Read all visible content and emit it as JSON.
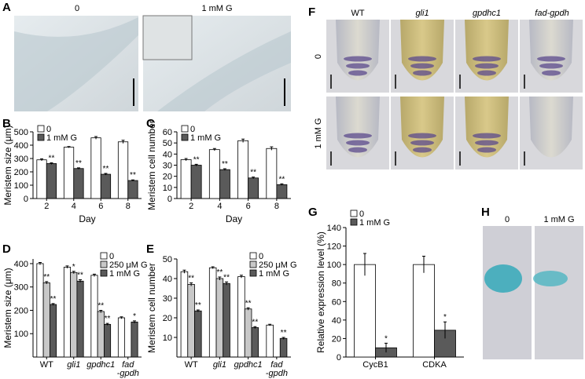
{
  "chart_data": [
    {
      "type": "bar",
      "ylabel": "Meristem size (μm)",
      "xlabel": "Day",
      "categories": [
        "2",
        "4",
        "6",
        "8"
      ],
      "ylim": [
        0,
        500
      ],
      "yticks": [
        0,
        100,
        200,
        300,
        400,
        500
      ],
      "legend": "upper left",
      "series": [
        {
          "name": "0",
          "color": "#ffffff",
          "values": [
            290,
            385,
            455,
            425
          ],
          "errors": [
            8,
            5,
            10,
            12
          ],
          "annotations": [
            null,
            null,
            null,
            null
          ]
        },
        {
          "name": "1 mM G",
          "color": "#5a5a5a",
          "values": [
            262,
            225,
            182,
            135
          ],
          "errors": [
            6,
            5,
            6,
            5
          ],
          "annotations": [
            "**",
            "**",
            "**",
            "**"
          ]
        }
      ]
    },
    {
      "type": "bar",
      "ylabel": "Meristem cell number",
      "xlabel": "Day",
      "categories": [
        "2",
        "4",
        "6",
        "8"
      ],
      "ylim": [
        0,
        60
      ],
      "yticks": [
        0,
        10,
        20,
        30,
        40,
        50,
        60
      ],
      "legend": "upper left",
      "series": [
        {
          "name": "0",
          "color": "#ffffff",
          "values": [
            35,
            44,
            52,
            45
          ],
          "errors": [
            1,
            1,
            1.5,
            1.5
          ],
          "annotations": [
            null,
            null,
            null,
            null
          ]
        },
        {
          "name": "1 mM G",
          "color": "#5a5a5a",
          "values": [
            30,
            26,
            18.5,
            12.5
          ],
          "errors": [
            0.8,
            0.8,
            0.8,
            0.7
          ],
          "annotations": [
            "**",
            "**",
            "**",
            "**"
          ]
        }
      ]
    },
    {
      "type": "bar",
      "ylabel": "Meristem size (μm)",
      "categories": [
        "WT",
        "gli1",
        "gpdhc1",
        "fad\n-gpdh"
      ],
      "ylim": [
        0,
        420
      ],
      "yticks": [
        100,
        200,
        300,
        400
      ],
      "legend": "upper right",
      "series": [
        {
          "name": "0",
          "color": "#ffffff",
          "values": [
            400,
            385,
            350,
            168
          ],
          "errors": [
            5,
            5,
            5,
            4
          ],
          "annotations": [
            null,
            null,
            null,
            null
          ]
        },
        {
          "name": "250 μM G",
          "color": "#c8c8c8",
          "values": [
            318,
            362,
            195,
            null
          ],
          "errors": [
            5,
            5,
            5,
            null
          ],
          "annotations": [
            "**",
            "*",
            "**",
            null
          ]
        },
        {
          "name": "1 mM G",
          "color": "#5a5a5a",
          "values": [
            225,
            325,
            140,
            150
          ],
          "errors": [
            4,
            6,
            4,
            5
          ],
          "annotations": [
            "**",
            "**",
            "**",
            "*"
          ]
        }
      ]
    },
    {
      "type": "bar",
      "ylabel": "Meristem cell number",
      "categories": [
        "WT",
        "gli1",
        "gpdhc1",
        "fad\n-gpdh"
      ],
      "ylim": [
        0,
        50
      ],
      "yticks": [
        10,
        20,
        30,
        40,
        50
      ],
      "legend": "upper right",
      "series": [
        {
          "name": "0",
          "color": "#ffffff",
          "values": [
            43.5,
            45.5,
            41,
            16.3
          ],
          "errors": [
            0.8,
            0.5,
            0.7,
            0.4
          ],
          "annotations": [
            null,
            null,
            null,
            null
          ]
        },
        {
          "name": "250 μM G",
          "color": "#c8c8c8",
          "values": [
            37,
            40,
            24.5,
            null
          ],
          "errors": [
            0.8,
            0.8,
            0.6,
            null
          ],
          "annotations": [
            "**",
            "**",
            "**",
            null
          ]
        },
        {
          "name": "1 mM G",
          "color": "#5a5a5a",
          "values": [
            23.5,
            37.5,
            15,
            9.5
          ],
          "errors": [
            0.5,
            0.8,
            0.5,
            0.5
          ],
          "annotations": [
            "**",
            "**",
            "**",
            "**"
          ]
        }
      ]
    },
    {
      "type": "bar",
      "ylabel": "Relative expression level (%)",
      "categories": [
        "CycB1",
        "CDKA"
      ],
      "ylim": [
        0,
        140
      ],
      "yticks": [
        0,
        20,
        40,
        60,
        80,
        100,
        120,
        140
      ],
      "legend": "upper left",
      "series": [
        {
          "name": "0",
          "color": "#ffffff",
          "values": [
            100,
            100
          ],
          "errors": [
            12,
            9
          ],
          "annotations": [
            null,
            null
          ]
        },
        {
          "name": "1 mM G",
          "color": "#5a5a5a",
          "values": [
            10,
            29
          ],
          "errors": [
            5,
            9
          ],
          "annotations": [
            "*",
            "*"
          ]
        }
      ]
    }
  ],
  "figure": {
    "panel_labels": [
      "A",
      "B",
      "C",
      "D",
      "E",
      "F",
      "G",
      "H"
    ],
    "a_labels": [
      "0",
      "1 mM G"
    ],
    "f_columns": [
      "WT",
      "gli1",
      "gpdhc1",
      "fad-gpdh"
    ],
    "f_rows": [
      "0",
      "1 mM G"
    ],
    "h_labels": [
      "0",
      "1 mM G"
    ]
  }
}
